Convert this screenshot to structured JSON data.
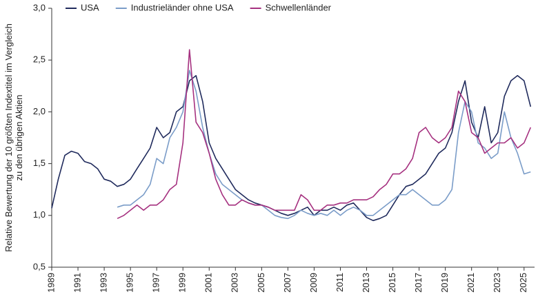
{
  "chart_data": {
    "type": "line",
    "ylabel": [
      "Relative Bewertung der 10 größten Indextitel im Vergleich",
      "zu den übrigen Aktien"
    ],
    "x": [
      1989,
      1989.5,
      1990,
      1990.5,
      1991,
      1991.5,
      1992,
      1992.5,
      1993,
      1993.5,
      1994,
      1994.5,
      1995,
      1995.5,
      1996,
      1996.5,
      1997,
      1997.5,
      1998,
      1998.5,
      1999,
      1999.5,
      2000,
      2000.5,
      2001,
      2001.5,
      2002,
      2002.5,
      2003,
      2003.5,
      2004,
      2004.5,
      2005,
      2005.5,
      2006,
      2006.5,
      2007,
      2007.5,
      2008,
      2008.5,
      2009,
      2009.5,
      2010,
      2010.5,
      2011,
      2011.5,
      2012,
      2012.5,
      2013,
      2013.5,
      2014,
      2014.5,
      2015,
      2015.5,
      2016,
      2016.5,
      2017,
      2017.5,
      2018,
      2018.5,
      2019,
      2019.5,
      2020,
      2020.5,
      2021,
      2021.5,
      2022,
      2022.5,
      2023,
      2023.5,
      2024,
      2024.5,
      2025,
      2025.5
    ],
    "series": [
      {
        "name": "USA",
        "color": "#1f2a5c",
        "values": [
          1.07,
          1.35,
          1.58,
          1.62,
          1.6,
          1.52,
          1.5,
          1.45,
          1.35,
          1.33,
          1.28,
          1.3,
          1.35,
          1.45,
          1.55,
          1.65,
          1.85,
          1.75,
          1.8,
          2.0,
          2.05,
          2.3,
          2.35,
          2.1,
          1.7,
          1.55,
          1.45,
          1.35,
          1.25,
          1.2,
          1.15,
          1.12,
          1.1,
          1.08,
          1.05,
          1.02,
          1.0,
          1.02,
          1.05,
          1.08,
          1.0,
          1.05,
          1.05,
          1.08,
          1.05,
          1.1,
          1.12,
          1.05,
          0.98,
          0.95,
          0.97,
          1.0,
          1.1,
          1.2,
          1.28,
          1.3,
          1.35,
          1.4,
          1.5,
          1.6,
          1.65,
          1.8,
          2.1,
          2.3,
          1.9,
          1.75,
          2.05,
          1.7,
          1.8,
          2.15,
          2.3,
          2.35,
          2.3,
          2.05
        ]
      },
      {
        "name": "Industrieländer ohne USA",
        "color": "#7a9cc8",
        "values": [
          null,
          null,
          null,
          null,
          null,
          null,
          null,
          null,
          null,
          null,
          1.08,
          1.1,
          1.1,
          1.15,
          1.2,
          1.3,
          1.55,
          1.5,
          1.75,
          1.85,
          2.0,
          2.4,
          2.2,
          1.85,
          1.6,
          1.4,
          1.3,
          1.25,
          1.2,
          1.15,
          1.12,
          1.1,
          1.1,
          1.05,
          1.0,
          0.98,
          0.97,
          1.0,
          1.05,
          1.02,
          1.0,
          1.02,
          1.0,
          1.05,
          1.0,
          1.05,
          1.08,
          1.05,
          1.0,
          1.0,
          1.05,
          1.1,
          1.15,
          1.2,
          1.2,
          1.25,
          1.2,
          1.15,
          1.1,
          1.1,
          1.15,
          1.25,
          1.8,
          2.1,
          2.0,
          1.7,
          1.65,
          1.55,
          1.6,
          2.0,
          1.75,
          1.6,
          1.4,
          1.42
        ]
      },
      {
        "name": "Schwellenländer",
        "color": "#a5307f",
        "values": [
          null,
          null,
          null,
          null,
          null,
          null,
          null,
          null,
          null,
          null,
          0.97,
          1.0,
          1.05,
          1.1,
          1.05,
          1.1,
          1.1,
          1.15,
          1.25,
          1.3,
          1.7,
          2.6,
          1.9,
          1.8,
          1.6,
          1.35,
          1.2,
          1.1,
          1.1,
          1.15,
          1.12,
          1.1,
          1.1,
          1.08,
          1.05,
          1.05,
          1.05,
          1.05,
          1.2,
          1.15,
          1.05,
          1.05,
          1.1,
          1.1,
          1.12,
          1.12,
          1.15,
          1.15,
          1.15,
          1.18,
          1.25,
          1.3,
          1.4,
          1.4,
          1.45,
          1.55,
          1.8,
          1.85,
          1.75,
          1.7,
          1.75,
          1.85,
          2.2,
          2.1,
          1.8,
          1.75,
          1.6,
          1.65,
          1.7,
          1.7,
          1.75,
          1.65,
          1.7,
          1.85
        ]
      }
    ],
    "xlim": [
      1989,
      2025.8
    ],
    "xticks": [
      1989,
      1991,
      1993,
      1995,
      1997,
      1999,
      2001,
      2003,
      2005,
      2007,
      2009,
      2011,
      2013,
      2015,
      2017,
      2019,
      2021,
      2023,
      2025
    ],
    "ylim": [
      0.5,
      3.0
    ],
    "yticks": [
      {
        "value": 0.5,
        "label": "0,5"
      },
      {
        "value": 1.0,
        "label": "1,0"
      },
      {
        "value": 1.5,
        "label": "1,5"
      },
      {
        "value": 2.0,
        "label": "2,0"
      },
      {
        "value": 2.5,
        "label": "2,5"
      },
      {
        "value": 3.0,
        "label": "3,0"
      }
    ],
    "legend": "top-left"
  }
}
